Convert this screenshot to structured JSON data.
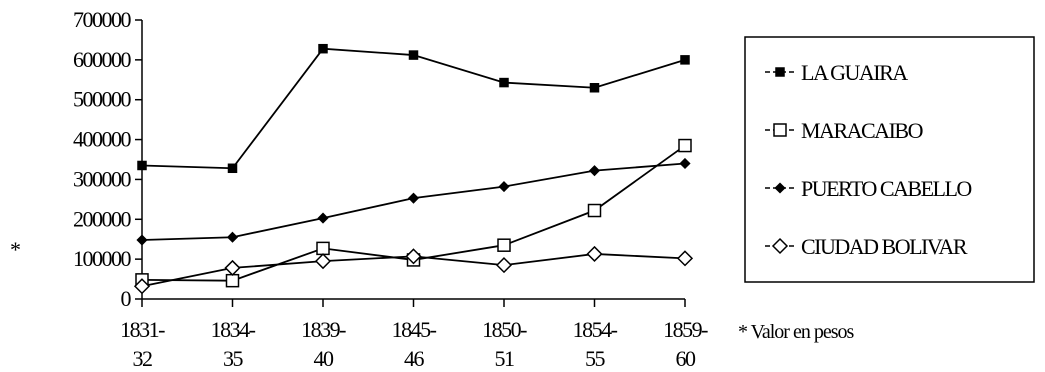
{
  "chart_data": {
    "type": "line",
    "categories": [
      "1831-32",
      "1834-35",
      "1839-40",
      "1845-46",
      "1850-51",
      "1854-55",
      "1859-60"
    ],
    "category_lines": [
      [
        "1831-",
        "32"
      ],
      [
        "1834-",
        "35"
      ],
      [
        "1839-",
        "40"
      ],
      [
        "1845-",
        "46"
      ],
      [
        "1850-",
        "51"
      ],
      [
        "1854-",
        "55"
      ],
      [
        "1859-",
        "60"
      ]
    ],
    "ylim": [
      0,
      700000
    ],
    "y_ticks": [
      "700000",
      "600000",
      "500000",
      "400000",
      "300000",
      "200000",
      "100000",
      "0"
    ],
    "y_tick_values": [
      700000,
      600000,
      500000,
      400000,
      300000,
      200000,
      100000,
      0
    ],
    "ylabel_marker": "*",
    "grid": false,
    "legend_position": "right",
    "series": [
      {
        "name": "LA GUAIRA",
        "marker": "filled-square",
        "values": [
          335000,
          328000,
          628000,
          612000,
          543000,
          530000,
          600000
        ]
      },
      {
        "name": "MARACAIBO",
        "marker": "open-square",
        "values": [
          48000,
          46000,
          127000,
          98000,
          135000,
          222000,
          385000
        ]
      },
      {
        "name": "PUERTO CABELLO",
        "marker": "filled-diamond",
        "values": [
          148000,
          155000,
          203000,
          253000,
          282000,
          322000,
          340000
        ]
      },
      {
        "name": "CIUDAD BOLIVAR",
        "marker": "open-diamond",
        "values": [
          32000,
          78000,
          95000,
          107000,
          85000,
          113000,
          102000
        ]
      }
    ],
    "note": "* Valor en pesos"
  }
}
